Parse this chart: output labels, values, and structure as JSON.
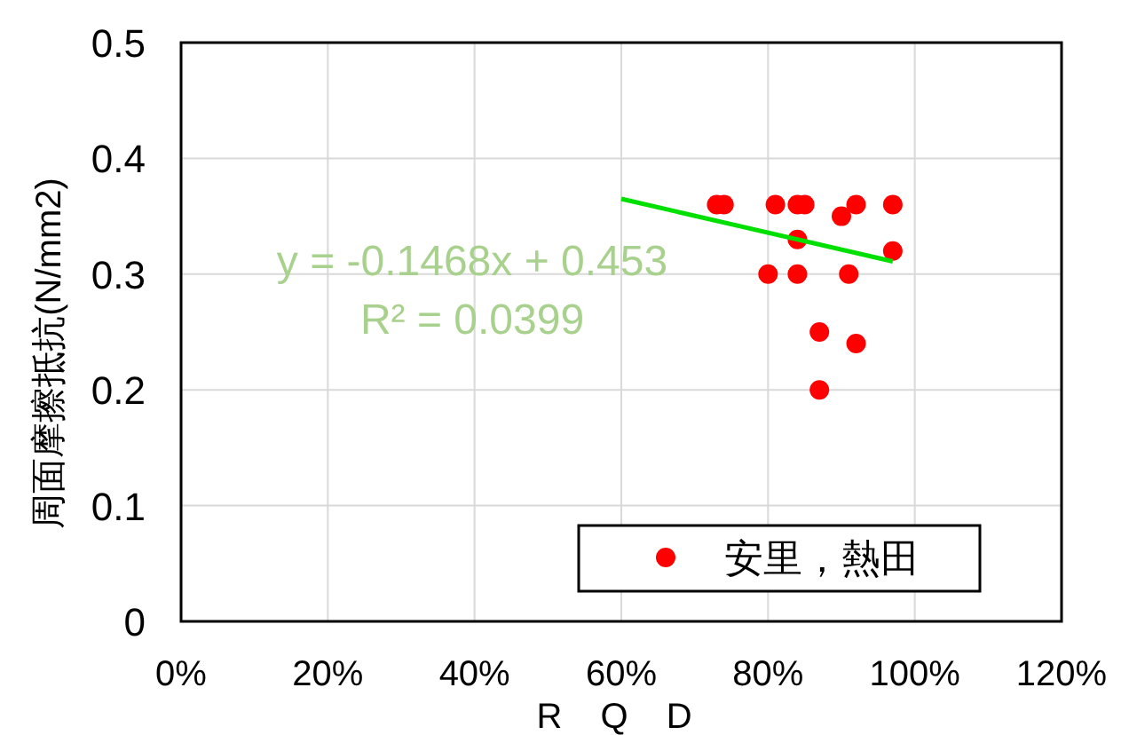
{
  "chart_data": {
    "type": "scatter",
    "xlabel": "R Q D",
    "ylabel": "周面摩擦抵抗(N/mm2)",
    "xlim": [
      0,
      1.2
    ],
    "ylim": [
      0,
      0.5
    ],
    "xticks": [
      {
        "value": 0,
        "label": "0%"
      },
      {
        "value": 0.2,
        "label": "20%"
      },
      {
        "value": 0.4,
        "label": "40%"
      },
      {
        "value": 0.6,
        "label": "60%"
      },
      {
        "value": 0.8,
        "label": "80%"
      },
      {
        "value": 1.0,
        "label": "100%"
      },
      {
        "value": 1.2,
        "label": "120%"
      }
    ],
    "yticks": [
      {
        "value": 0,
        "label": "0"
      },
      {
        "value": 0.1,
        "label": "0.1"
      },
      {
        "value": 0.2,
        "label": "0.2"
      },
      {
        "value": 0.3,
        "label": "0.3"
      },
      {
        "value": 0.4,
        "label": "0.4"
      },
      {
        "value": 0.5,
        "label": "0.5"
      }
    ],
    "grid": true,
    "legend": "bottom right",
    "series": [
      {
        "name": "安里，熱田",
        "marker": "circle",
        "color": "#ff0000",
        "x": [
          0.73,
          0.74,
          0.81,
          0.84,
          0.85,
          0.92,
          0.97,
          0.9,
          0.84,
          0.97,
          0.8,
          0.84,
          0.91,
          0.87,
          0.92,
          0.87
        ],
        "values": [
          0.36,
          0.36,
          0.36,
          0.36,
          0.36,
          0.36,
          0.36,
          0.35,
          0.33,
          0.32,
          0.3,
          0.3,
          0.3,
          0.25,
          0.24,
          0.2
        ]
      },
      {
        "type": "line",
        "marker": "none",
        "color": "#00e000",
        "x": [
          0.6,
          0.97
        ],
        "values": [
          0.365,
          0.311
        ]
      }
    ],
    "annotations": [
      "y = -0.1468x + 0.453",
      "R² = 0.0399"
    ]
  }
}
